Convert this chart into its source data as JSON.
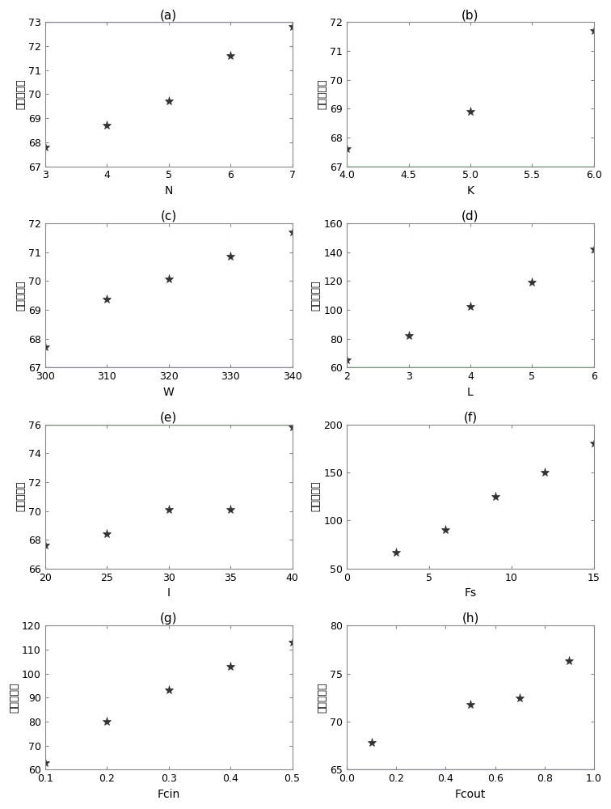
{
  "subplots": [
    {
      "label": "(a)",
      "xlabel": "N",
      "ylabel": "连接块延时",
      "xlim": [
        3,
        7
      ],
      "ylim": [
        67,
        73
      ],
      "xticks": [
        3,
        4,
        5,
        6,
        7
      ],
      "yticks": [
        67,
        68,
        69,
        70,
        71,
        72,
        73
      ],
      "xdata": [
        3,
        4,
        5,
        6,
        7
      ],
      "ydata": [
        67.8,
        68.7,
        69.7,
        71.6,
        72.8
      ],
      "hline": {
        "y": 73,
        "color": "#9966cc"
      },
      "vline": null
    },
    {
      "label": "(b)",
      "xlabel": "K",
      "ylabel": "连接块延时",
      "xlim": [
        4,
        6
      ],
      "ylim": [
        67,
        72
      ],
      "xticks": [
        4,
        4.5,
        5,
        5.5,
        6
      ],
      "yticks": [
        67,
        68,
        69,
        70,
        71,
        72
      ],
      "xdata": [
        4,
        5,
        6
      ],
      "ydata": [
        67.6,
        68.9,
        71.7
      ],
      "hline": {
        "y": 67,
        "color": "#00aa00"
      },
      "vline": null
    },
    {
      "label": "(c)",
      "xlabel": "W",
      "ylabel": "连接块延时",
      "xlim": [
        300,
        340
      ],
      "ylim": [
        67,
        72
      ],
      "xticks": [
        300,
        310,
        320,
        330,
        340
      ],
      "yticks": [
        67,
        68,
        69,
        70,
        71,
        72
      ],
      "xdata": [
        300,
        310,
        320,
        330,
        340
      ],
      "ydata": [
        67.7,
        69.35,
        70.05,
        70.85,
        71.7
      ],
      "hline": {
        "y": 67,
        "color": "#9966cc"
      },
      "vline": null
    },
    {
      "label": "(d)",
      "xlabel": "L",
      "ylabel": "连接块延时",
      "xlim": [
        2,
        6
      ],
      "ylim": [
        60,
        160
      ],
      "xticks": [
        2,
        3,
        4,
        5,
        6
      ],
      "yticks": [
        60,
        80,
        100,
        120,
        140,
        160
      ],
      "xdata": [
        2,
        3,
        4,
        5,
        6
      ],
      "ydata": [
        65,
        82,
        102,
        119,
        142
      ],
      "hline": {
        "y": 60,
        "color": "#00aa00"
      },
      "vline": null
    },
    {
      "label": "(e)",
      "xlabel": "I",
      "ylabel": "连接块延时",
      "xlim": [
        20,
        40
      ],
      "ylim": [
        66,
        76
      ],
      "xticks": [
        20,
        25,
        30,
        35,
        40
      ],
      "yticks": [
        66,
        68,
        70,
        72,
        74,
        76
      ],
      "xdata": [
        20,
        25,
        30,
        35,
        40
      ],
      "ydata": [
        67.6,
        68.4,
        70.1,
        70.1,
        75.8
      ],
      "hline": {
        "y": 76,
        "color": "#00aa00"
      },
      "vline": null
    },
    {
      "label": "(f)",
      "xlabel": "Fs",
      "ylabel": "连接块延时",
      "xlim": [
        0,
        15
      ],
      "ylim": [
        50,
        200
      ],
      "xticks": [
        0,
        5,
        10,
        15
      ],
      "yticks": [
        50,
        100,
        150,
        200
      ],
      "xdata": [
        3,
        6,
        9,
        12,
        15
      ],
      "ydata": [
        67,
        90,
        125,
        150,
        180
      ],
      "hline": null,
      "vline": null
    },
    {
      "label": "(g)",
      "xlabel": "Fcin",
      "ylabel": "连接块延时",
      "xlim": [
        0.1,
        0.5
      ],
      "ylim": [
        60,
        120
      ],
      "xticks": [
        0.1,
        0.2,
        0.3,
        0.4,
        0.5
      ],
      "yticks": [
        60,
        70,
        80,
        90,
        100,
        110,
        120
      ],
      "xdata": [
        0.1,
        0.2,
        0.3,
        0.4,
        0.5
      ],
      "ydata": [
        63,
        80,
        93,
        103,
        113
      ],
      "hline": null,
      "vline": null
    },
    {
      "label": "(h)",
      "xlabel": "Fcout",
      "ylabel": "连接块延时",
      "xlim": [
        0,
        1
      ],
      "ylim": [
        65,
        80
      ],
      "xticks": [
        0,
        0.2,
        0.4,
        0.6,
        0.8,
        1.0
      ],
      "yticks": [
        65,
        70,
        75,
        80
      ],
      "xdata": [
        0.1,
        0.5,
        0.7,
        0.9
      ],
      "ydata": [
        67.8,
        71.8,
        72.4,
        76.3
      ],
      "hline": {
        "y": 65,
        "color": "#9966cc"
      },
      "vline": null
    }
  ],
  "marker": "*",
  "marker_size": 8,
  "marker_color": "#333333",
  "figure_bg": "white",
  "spine_color": "#888888",
  "ylabel_fontsize": 9,
  "xlabel_fontsize": 10,
  "title_fontsize": 11,
  "tick_labelsize": 9
}
